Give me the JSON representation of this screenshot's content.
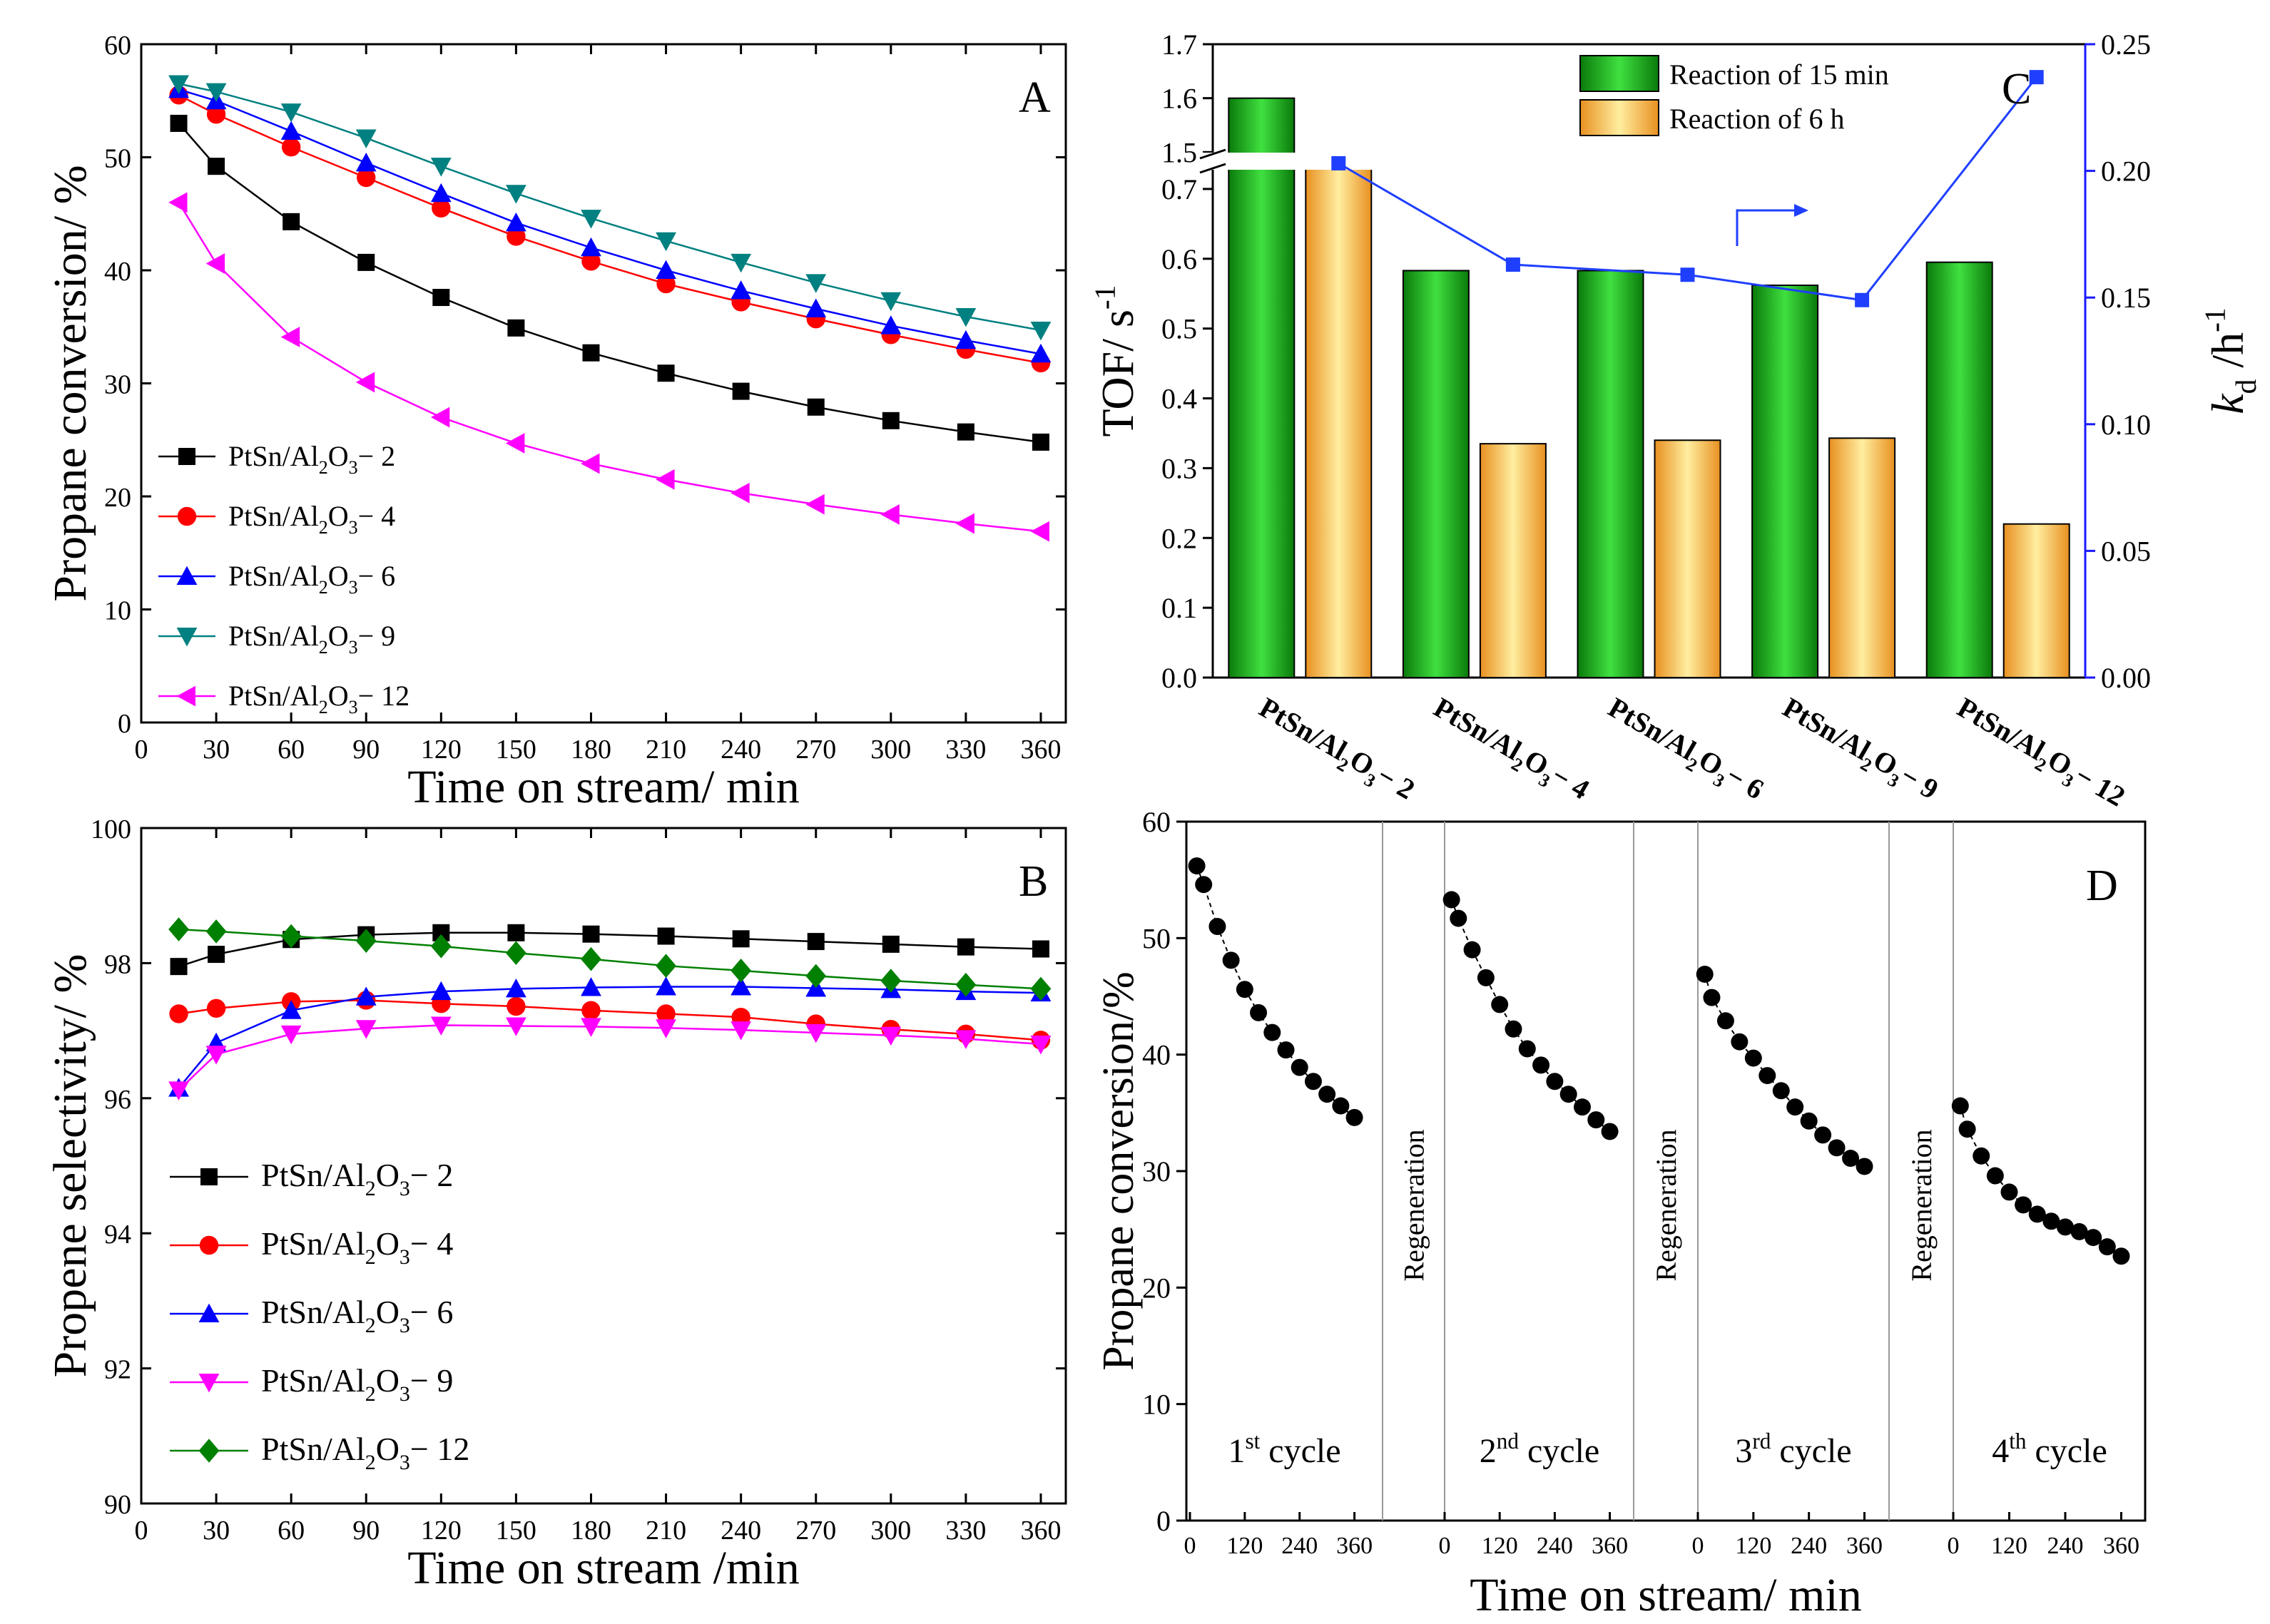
{
  "figure": {
    "colors": {
      "black": "#000000",
      "red": "#ff0000",
      "blue": "#0000ff",
      "teal": "#008080",
      "magenta": "#ff00ff",
      "green": "#008000",
      "bar_green": "#22aa22",
      "bar_orange": "#f0a030",
      "line_blue": "#1f3fff",
      "axis_blue": "#1a1aff",
      "regen_red": "#ff0000"
    },
    "panels": {
      "A": {
        "label": "A",
        "chart_data": {
          "type": "line",
          "xlabel": "Time on stream/ min",
          "ylabel": "Propane conversion/ %",
          "xlim": [
            0,
            370
          ],
          "ylim": [
            0,
            60
          ],
          "xticks": [
            0,
            30,
            60,
            90,
            120,
            150,
            180,
            210,
            240,
            270,
            300,
            330,
            360
          ],
          "yticks": [
            0,
            10,
            20,
            30,
            40,
            50,
            60
          ],
          "x": [
            15,
            30,
            60,
            90,
            120,
            150,
            180,
            210,
            240,
            270,
            300,
            330,
            360
          ],
          "series": [
            {
              "name": "PtSn/Al2O3-2",
              "name_parts": [
                "PtSn/Al",
                "2",
                "O",
                "3",
                "− 2"
              ],
              "color": "#000000",
              "marker": "square",
              "values": [
                53.0,
                49.2,
                44.3,
                40.7,
                37.6,
                34.9,
                32.7,
                30.9,
                29.3,
                27.9,
                26.7,
                25.7,
                24.8
              ]
            },
            {
              "name": "PtSn/Al2O3-4",
              "name_parts": [
                "PtSn/Al",
                "2",
                "O",
                "3",
                "− 4"
              ],
              "color": "#ff0000",
              "marker": "circle",
              "values": [
                55.5,
                53.8,
                50.9,
                48.2,
                45.5,
                43.0,
                40.8,
                38.8,
                37.2,
                35.7,
                34.3,
                33.0,
                31.8
              ]
            },
            {
              "name": "PtSn/Al2O3-6",
              "name_parts": [
                "PtSn/Al",
                "2",
                "O",
                "3",
                "− 6"
              ],
              "color": "#0000ff",
              "marker": "triangle-up",
              "values": [
                56.0,
                55.0,
                52.3,
                49.5,
                46.8,
                44.2,
                42.0,
                40.0,
                38.2,
                36.6,
                35.1,
                33.8,
                32.6
              ]
            },
            {
              "name": "PtSn/Al2O3-9",
              "name_parts": [
                "PtSn/Al",
                "2",
                "O",
                "3",
                "− 9"
              ],
              "color": "#008080",
              "marker": "triangle-down",
              "values": [
                56.5,
                55.8,
                54.0,
                51.7,
                49.2,
                46.8,
                44.6,
                42.6,
                40.7,
                38.9,
                37.3,
                35.9,
                34.7
              ]
            },
            {
              "name": "PtSn/Al2O3-12",
              "name_parts": [
                "PtSn/Al",
                "2",
                "O",
                "3",
                "− 12"
              ],
              "color": "#ff00ff",
              "marker": "triangle-left",
              "values": [
                46.0,
                40.6,
                34.1,
                30.1,
                27.0,
                24.7,
                22.9,
                21.5,
                20.3,
                19.3,
                18.4,
                17.6,
                16.9
              ]
            }
          ]
        }
      },
      "B": {
        "label": "B",
        "chart_data": {
          "type": "line",
          "xlabel": "Time on stream /min",
          "ylabel": "Propene selectivity/ %",
          "xlim": [
            0,
            370
          ],
          "ylim": [
            90,
            100
          ],
          "xticks": [
            0,
            30,
            60,
            90,
            120,
            150,
            180,
            210,
            240,
            270,
            300,
            330,
            360
          ],
          "yticks": [
            90,
            92,
            94,
            96,
            98,
            100
          ],
          "x": [
            15,
            30,
            60,
            90,
            120,
            150,
            180,
            210,
            240,
            270,
            300,
            330,
            360
          ],
          "series": [
            {
              "name": "PtSn/Al2O3-2",
              "name_parts": [
                "PtSn/Al",
                "2",
                "O",
                "3",
                "− 2"
              ],
              "color": "#000000",
              "marker": "square",
              "values": [
                97.95,
                98.13,
                98.35,
                98.42,
                98.45,
                98.45,
                98.43,
                98.4,
                98.36,
                98.32,
                98.28,
                98.24,
                98.21
              ]
            },
            {
              "name": "PtSn/Al2O3-4",
              "name_parts": [
                "PtSn/Al",
                "2",
                "O",
                "3",
                "− 4"
              ],
              "color": "#ff0000",
              "marker": "circle",
              "values": [
                97.25,
                97.33,
                97.43,
                97.45,
                97.4,
                97.36,
                97.3,
                97.25,
                97.2,
                97.1,
                97.02,
                96.95,
                96.86
              ]
            },
            {
              "name": "PtSn/Al2O3-6",
              "name_parts": [
                "PtSn/Al",
                "2",
                "O",
                "3",
                "− 6"
              ],
              "color": "#0000ff",
              "marker": "triangle-up",
              "values": [
                96.15,
                96.82,
                97.3,
                97.5,
                97.58,
                97.62,
                97.64,
                97.65,
                97.65,
                97.63,
                97.61,
                97.58,
                97.56
              ]
            },
            {
              "name": "PtSn/Al2O3-9",
              "name_parts": [
                "PtSn/Al",
                "2",
                "O",
                "3",
                "− 9"
              ],
              "color": "#ff00ff",
              "marker": "triangle-down",
              "values": [
                96.12,
                96.65,
                96.95,
                97.03,
                97.08,
                97.07,
                97.06,
                97.04,
                97.01,
                96.97,
                96.93,
                96.88,
                96.8
              ]
            },
            {
              "name": "PtSn/Al2O3-12",
              "name_parts": [
                "PtSn/Al",
                "2",
                "O",
                "3",
                "− 12"
              ],
              "color": "#008000",
              "marker": "diamond",
              "values": [
                98.5,
                98.47,
                98.4,
                98.33,
                98.25,
                98.15,
                98.06,
                97.96,
                97.89,
                97.81,
                97.74,
                97.68,
                97.62
              ]
            }
          ]
        }
      },
      "C": {
        "label": "C",
        "arrow_note": "",
        "chart_data": {
          "type": "bar",
          "ylabel_left": "TOF/ s",
          "ylabel_left_sup": "-1",
          "ylabel_right_k": "k",
          "ylabel_right_sub": "d",
          "ylabel_right_rest": " /h",
          "ylabel_right_sup": "-1",
          "categories": [
            [
              "PtSn/Al",
              "2",
              "O",
              "3",
              "− 2"
            ],
            [
              "PtSn/Al",
              "2",
              "O",
              "3",
              "− 4"
            ],
            [
              "PtSn/Al",
              "2",
              "O",
              "3",
              "− 6"
            ],
            [
              "PtSn/Al",
              "2",
              "O",
              "3",
              "− 9"
            ],
            [
              "PtSn/Al",
              "2",
              "O",
              "3",
              "− 12"
            ]
          ],
          "left_axis_lower": {
            "range": [
              0.0,
              0.75
            ],
            "ticks": [
              "0.0",
              "0.1",
              "0.2",
              "0.3",
              "0.4",
              "0.5",
              "0.6",
              "0.7"
            ]
          },
          "left_axis_upper": {
            "range": [
              1.47,
              1.7
            ],
            "ticks": [
              "1.5",
              "1.6",
              "1.7"
            ]
          },
          "right_axis": {
            "range": [
              0.0,
              0.25
            ],
            "ticks": [
              "0.00",
              "0.05",
              "0.10",
              "0.15",
              "0.20",
              "0.25"
            ]
          },
          "series": [
            {
              "name": "Reaction of 15 min",
              "color": "#22aa22",
              "values": [
                1.6,
                0.583,
                0.583,
                0.562,
                0.595
              ]
            },
            {
              "name": "Reaction of 6 h",
              "color": "#f0a030",
              "values": [
                0.745,
                0.335,
                0.34,
                0.343,
                0.22
              ]
            }
          ],
          "kd_series": {
            "name": "kd",
            "color": "#1f3fff",
            "values": [
              0.203,
              0.163,
              0.159,
              0.149,
              0.237
            ]
          }
        }
      },
      "D": {
        "label": "D",
        "chart_data": {
          "type": "scatter",
          "xlabel": "Time on stream/ min",
          "ylabel": "Propane conversion/%",
          "ylim": [
            0,
            60
          ],
          "yticks": [
            0,
            10,
            20,
            30,
            40,
            50,
            60
          ],
          "xticks": [
            0,
            120,
            240,
            360
          ],
          "regeneration_label": "Regeneration",
          "cycles": [
            {
              "label_num": "1",
              "label_sup": "st",
              "label_rest": " cycle",
              "x": [
                15,
                30,
                60,
                90,
                120,
                150,
                180,
                210,
                240,
                270,
                300,
                330,
                360
              ],
              "values": [
                56.2,
                54.6,
                51.0,
                48.1,
                45.6,
                43.6,
                41.9,
                40.4,
                38.9,
                37.7,
                36.6,
                35.6,
                34.6
              ]
            },
            {
              "label_num": "2",
              "label_sup": "nd",
              "label_rest": " cycle",
              "x": [
                15,
                30,
                60,
                90,
                120,
                150,
                180,
                210,
                240,
                270,
                300,
                330,
                360
              ],
              "values": [
                53.3,
                51.7,
                49.0,
                46.6,
                44.3,
                42.2,
                40.5,
                39.1,
                37.7,
                36.6,
                35.5,
                34.4,
                33.4
              ]
            },
            {
              "label_num": "3",
              "label_sup": "rd",
              "label_rest": " cycle",
              "x": [
                15,
                30,
                60,
                90,
                120,
                150,
                180,
                210,
                240,
                270,
                300,
                330,
                360
              ],
              "values": [
                46.9,
                44.9,
                42.9,
                41.1,
                39.7,
                38.2,
                36.9,
                35.5,
                34.3,
                33.1,
                32.0,
                31.1,
                30.4
              ]
            },
            {
              "label_num": "4",
              "label_sup": "th",
              "label_rest": " cycle",
              "x": [
                15,
                30,
                60,
                90,
                120,
                150,
                180,
                210,
                240,
                270,
                300,
                330,
                360
              ],
              "values": [
                35.6,
                33.6,
                31.3,
                29.6,
                28.2,
                27.1,
                26.3,
                25.7,
                25.2,
                24.8,
                24.3,
                23.5,
                22.7
              ]
            }
          ]
        }
      }
    }
  }
}
